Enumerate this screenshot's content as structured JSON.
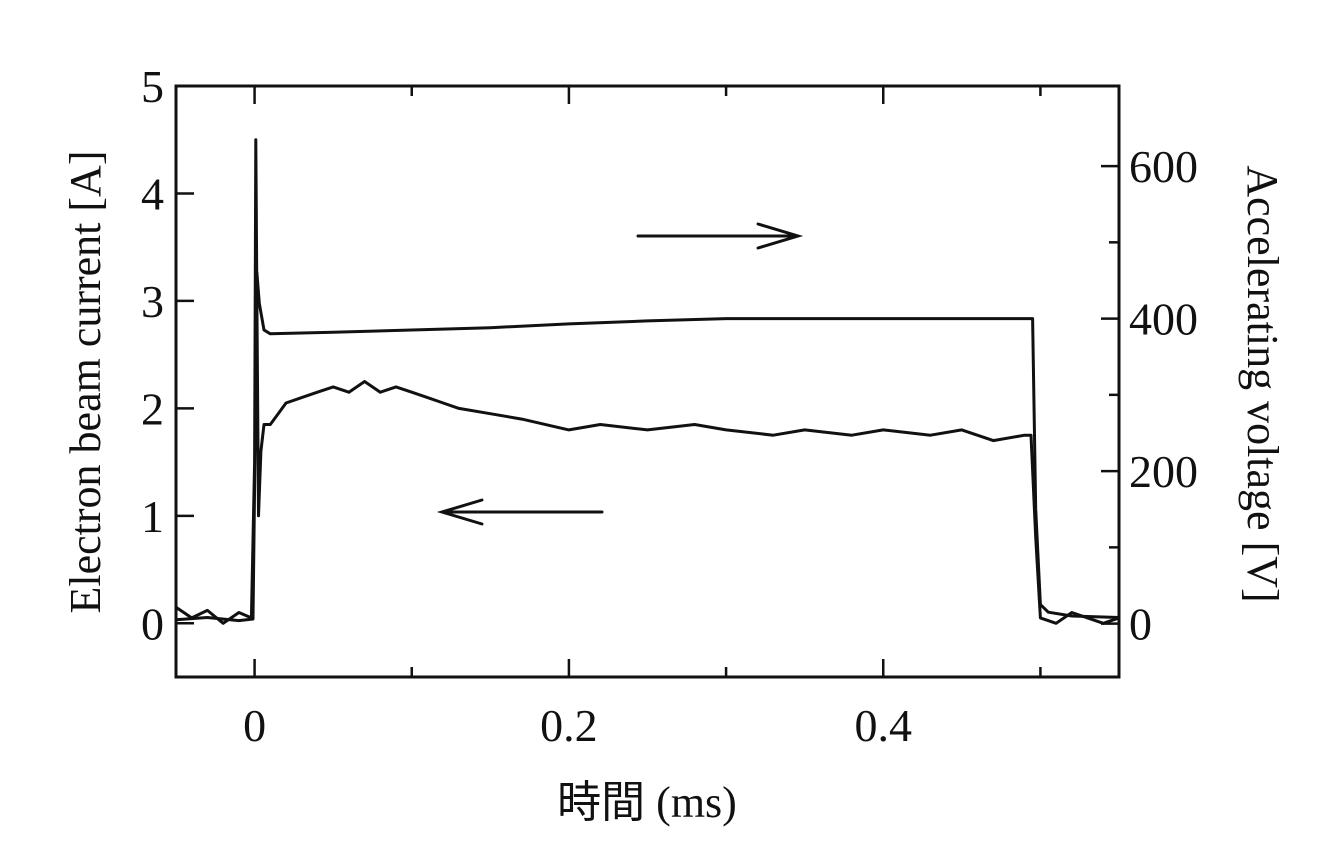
{
  "chart_data": {
    "type": "line",
    "xlabel": "時間 (ms)",
    "ylabel_left": "Electron beam current [A]",
    "ylabel_right": "Accelerating voltage [V]",
    "xlim": [
      -0.05,
      0.55
    ],
    "ylim_left": [
      -0.5,
      5
    ],
    "ylim_right": [
      -70,
      705
    ],
    "x_ticks": [
      0,
      0.2,
      0.4
    ],
    "x_tick_labels": [
      "0",
      "0.2",
      "0.4"
    ],
    "x_minor_ticks": [
      0.1,
      0.3,
      0.5
    ],
    "y_left_ticks": [
      0,
      1,
      2,
      3,
      4,
      5
    ],
    "y_left_tick_labels": [
      "0",
      "1",
      "2",
      "3",
      "4",
      "5"
    ],
    "y_right_ticks": [
      0,
      200,
      400,
      600
    ],
    "y_right_tick_labels": [
      "0",
      "200",
      "400",
      "600"
    ],
    "y_right_minor_ticks": [
      100,
      300,
      500
    ],
    "grid": false,
    "legend": "none",
    "annotations": [
      {
        "type": "arrow",
        "direction": "right",
        "points_to": "right axis (accelerating voltage)"
      },
      {
        "type": "arrow",
        "direction": "left",
        "points_to": "left axis (electron beam current)"
      }
    ],
    "series": [
      {
        "axis": "right",
        "x": [
          -0.05,
          -0.03,
          -0.01,
          -0.001,
          0.0,
          0.0015,
          0.003,
          0.006,
          0.01,
          0.05,
          0.1,
          0.15,
          0.2,
          0.25,
          0.3,
          0.35,
          0.4,
          0.45,
          0.495,
          0.497,
          0.5,
          0.505,
          0.52,
          0.55
        ],
        "y": [
          5,
          8,
          4,
          6,
          180,
          460,
          420,
          385,
          380,
          382,
          385,
          388,
          393,
          397,
          400,
          400,
          400,
          400,
          400,
          150,
          25,
          15,
          10,
          8
        ]
      },
      {
        "axis": "left",
        "x": [
          -0.05,
          -0.04,
          -0.03,
          -0.02,
          -0.01,
          -0.002,
          0.0,
          0.0008,
          0.0015,
          0.0025,
          0.004,
          0.006,
          0.01,
          0.015,
          0.02,
          0.03,
          0.04,
          0.05,
          0.06,
          0.07,
          0.08,
          0.09,
          0.1,
          0.11,
          0.12,
          0.13,
          0.15,
          0.17,
          0.2,
          0.22,
          0.25,
          0.28,
          0.3,
          0.33,
          0.35,
          0.38,
          0.4,
          0.43,
          0.45,
          0.47,
          0.49,
          0.494,
          0.497,
          0.5,
          0.51,
          0.52,
          0.53,
          0.54,
          0.55
        ],
        "y": [
          0.15,
          0.05,
          0.12,
          0.0,
          0.1,
          0.05,
          1.5,
          4.5,
          3.0,
          1.0,
          1.6,
          1.85,
          1.85,
          1.95,
          2.05,
          2.1,
          2.15,
          2.2,
          2.15,
          2.25,
          2.15,
          2.2,
          2.15,
          2.1,
          2.05,
          2.0,
          1.95,
          1.9,
          1.8,
          1.85,
          1.8,
          1.85,
          1.8,
          1.75,
          1.8,
          1.75,
          1.8,
          1.75,
          1.8,
          1.7,
          1.75,
          1.75,
          0.8,
          0.05,
          0.0,
          0.1,
          0.05,
          0.0,
          0.05
        ]
      }
    ]
  }
}
